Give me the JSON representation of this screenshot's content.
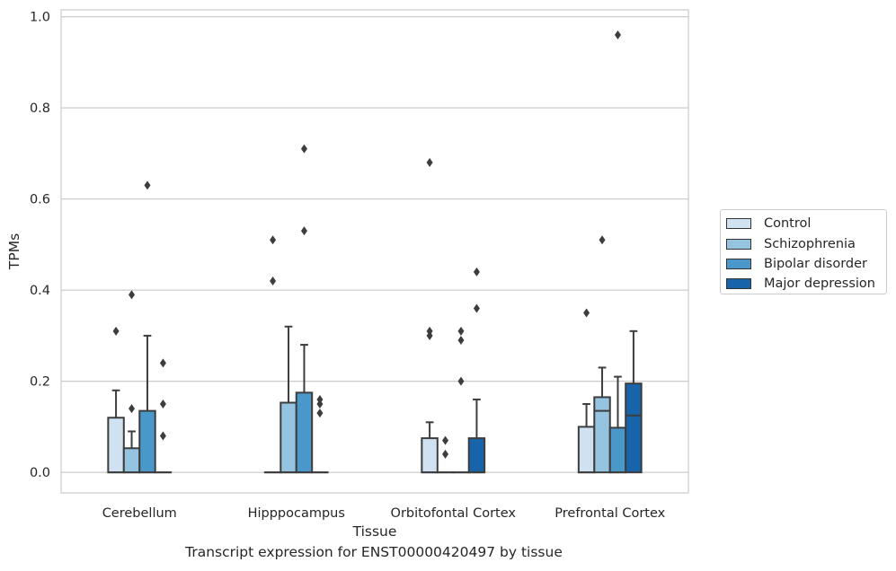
{
  "chart_data": {
    "type": "box",
    "caption": "Transcript expression for ENST00000420497 by tissue",
    "xlabel": "Tissue",
    "ylabel": "TPMs",
    "ylim": [
      -0.045,
      1.015
    ],
    "yticks": [
      0.0,
      0.2,
      0.4,
      0.6,
      0.8,
      1.0
    ],
    "ytick_labels": [
      "0.0",
      "0.2",
      "0.4",
      "0.6",
      "0.8",
      "1.0"
    ],
    "grid": "horizontal",
    "legend_position": "right",
    "categories": [
      "Cerebellum",
      "Hipppocampus",
      "Orbitofontal Cortex",
      "Prefrontal Cortex"
    ],
    "series": [
      {
        "name": "Control",
        "color": "#d0e1f2",
        "boxes": [
          {
            "q1": 0.0,
            "median": 0.0,
            "q3": 0.12,
            "whisker_low": 0.0,
            "whisker_high": 0.18,
            "outliers": [
              0.31
            ]
          },
          {
            "q1": 0.0,
            "median": 0.0,
            "q3": 0.0,
            "whisker_low": 0.0,
            "whisker_high": 0.0,
            "outliers": [
              0.42,
              0.51
            ]
          },
          {
            "q1": 0.0,
            "median": 0.0,
            "q3": 0.075,
            "whisker_low": 0.0,
            "whisker_high": 0.11,
            "outliers": [
              0.3,
              0.31,
              0.68
            ]
          },
          {
            "q1": 0.0,
            "median": 0.0,
            "q3": 0.1,
            "whisker_low": 0.0,
            "whisker_high": 0.15,
            "outliers": [
              0.35
            ]
          }
        ]
      },
      {
        "name": "Schizophrenia",
        "color": "#94c4df",
        "boxes": [
          {
            "q1": 0.0,
            "median": 0.0,
            "q3": 0.053,
            "whisker_low": 0.0,
            "whisker_high": 0.09,
            "outliers": [
              0.14,
              0.39
            ]
          },
          {
            "q1": 0.0,
            "median": 0.0,
            "q3": 0.153,
            "whisker_low": 0.0,
            "whisker_high": 0.32,
            "outliers": []
          },
          {
            "q1": 0.0,
            "median": 0.0,
            "q3": 0.0,
            "whisker_low": 0.0,
            "whisker_high": 0.0,
            "outliers": [
              0.04,
              0.07
            ]
          },
          {
            "q1": 0.0,
            "median": 0.135,
            "q3": 0.165,
            "whisker_low": 0.0,
            "whisker_high": 0.23,
            "outliers": [
              0.51
            ]
          }
        ]
      },
      {
        "name": "Bipolar disorder",
        "color": "#4a98c9",
        "boxes": [
          {
            "q1": 0.0,
            "median": 0.0,
            "q3": 0.135,
            "whisker_low": 0.0,
            "whisker_high": 0.3,
            "outliers": [
              0.63
            ]
          },
          {
            "q1": 0.0,
            "median": 0.0,
            "q3": 0.175,
            "whisker_low": 0.0,
            "whisker_high": 0.28,
            "outliers": [
              0.53,
              0.71
            ]
          },
          {
            "q1": 0.0,
            "median": 0.0,
            "q3": 0.0,
            "whisker_low": 0.0,
            "whisker_high": 0.0,
            "outliers": [
              0.2,
              0.29,
              0.31
            ]
          },
          {
            "q1": 0.0,
            "median": 0.0,
            "q3": 0.098,
            "whisker_low": 0.0,
            "whisker_high": 0.21,
            "outliers": [
              0.96
            ]
          }
        ]
      },
      {
        "name": "Major depression",
        "color": "#1764ab",
        "boxes": [
          {
            "q1": 0.0,
            "median": 0.0,
            "q3": 0.0,
            "whisker_low": 0.0,
            "whisker_high": 0.0,
            "outliers": [
              0.08,
              0.15,
              0.24
            ]
          },
          {
            "q1": 0.0,
            "median": 0.0,
            "q3": 0.0,
            "whisker_low": 0.0,
            "whisker_high": 0.0,
            "outliers": [
              0.13,
              0.15,
              0.16
            ]
          },
          {
            "q1": 0.0,
            "median": 0.0,
            "q3": 0.075,
            "whisker_low": 0.0,
            "whisker_high": 0.16,
            "outliers": [
              0.36,
              0.44
            ]
          },
          {
            "q1": 0.0,
            "median": 0.125,
            "q3": 0.195,
            "whisker_low": 0.0,
            "whisker_high": 0.31,
            "outliers": []
          }
        ]
      }
    ]
  }
}
